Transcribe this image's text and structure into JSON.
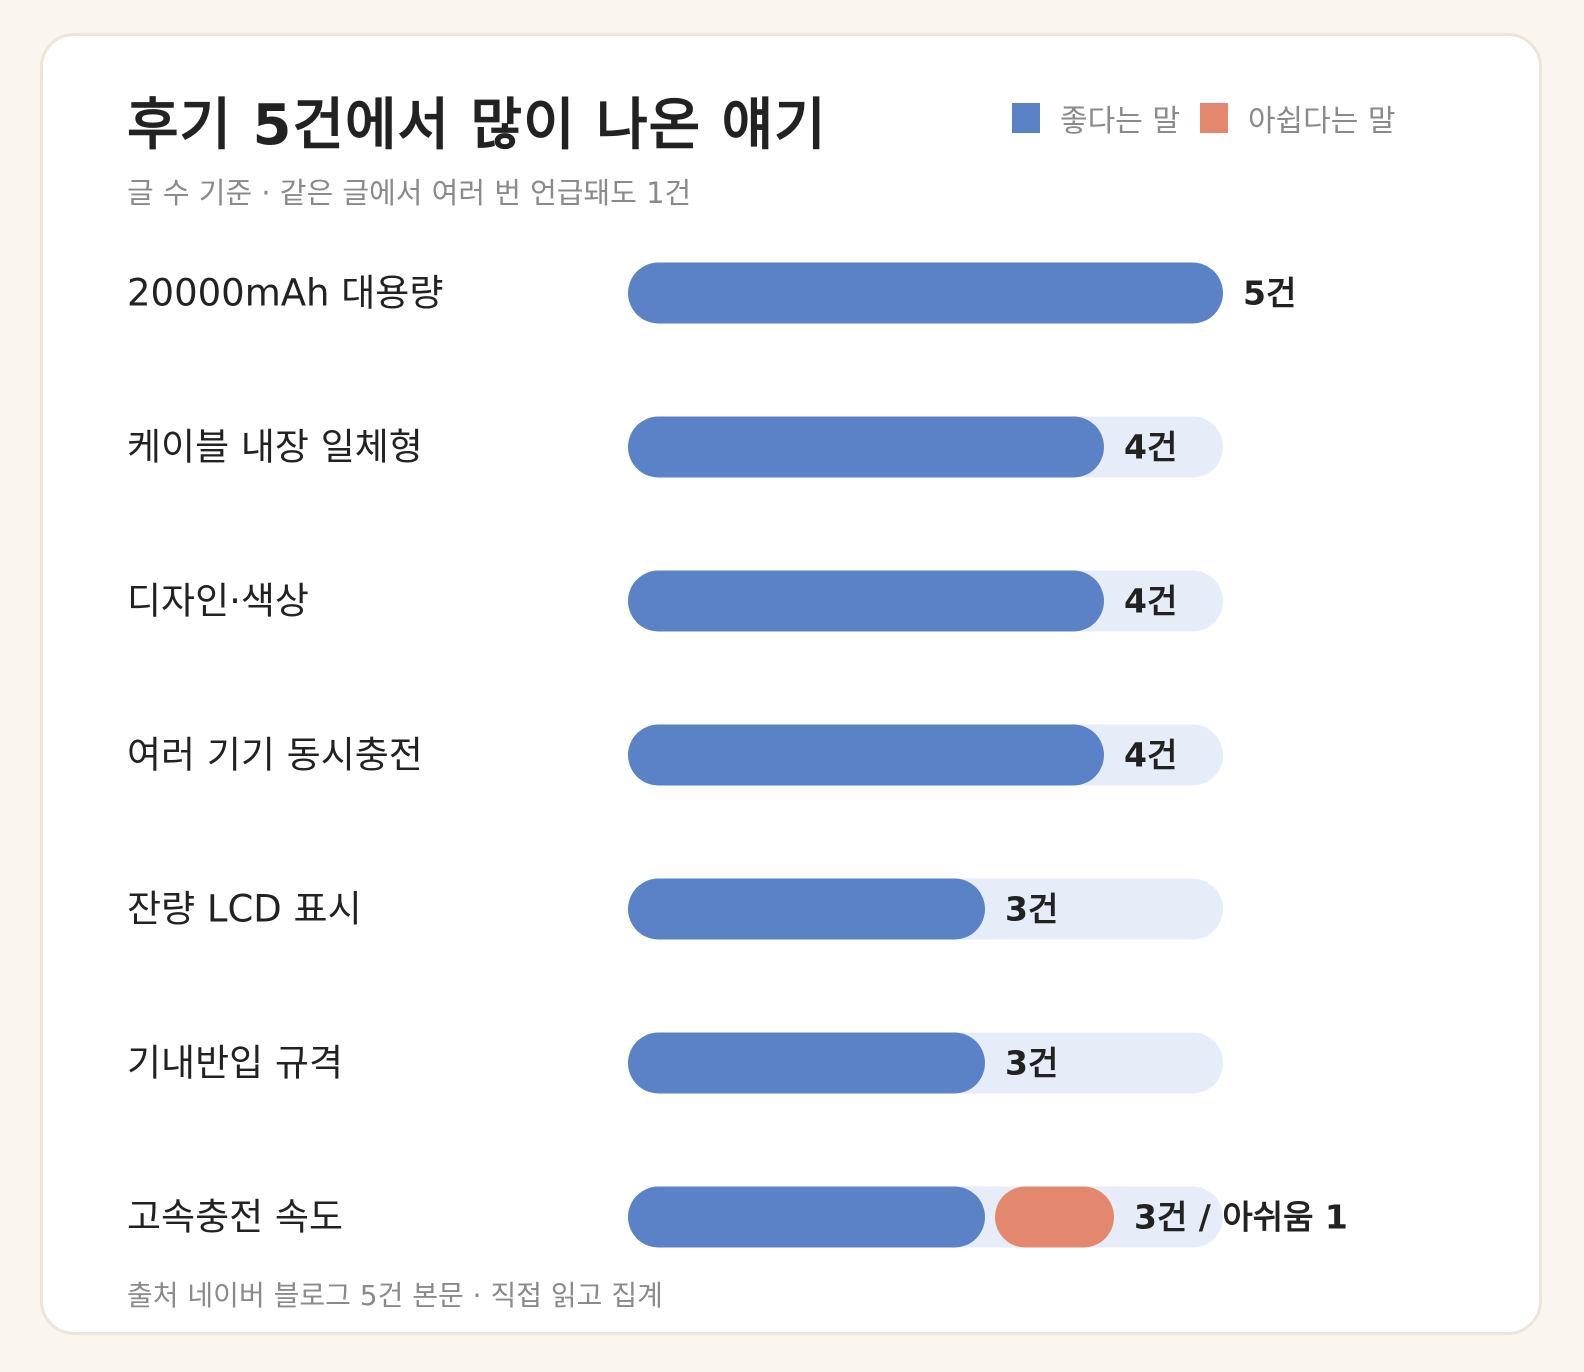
{
  "title": "후기 5건에서 많이 나온 얘기",
  "subtitle": "글 수 기준 · 같은 글에서 여러 번 언급돼도 1건",
  "footer": "출처 네이버 블로그 5건 본문 · 직접 읽고 집계",
  "legend": [
    {
      "label": "좋다는 말",
      "color": "#5b82c6"
    },
    {
      "label": "아쉽다는 말",
      "color": "#e3886e"
    }
  ],
  "colors": {
    "positive": "#5b82c6",
    "negative": "#e3886e",
    "track": "#e6edf8",
    "label": "#222222"
  },
  "chart_data": {
    "type": "bar",
    "orientation": "horizontal",
    "stacked": false,
    "xlim": [
      0,
      5
    ],
    "categories": [
      "20000mAh 대용량",
      "케이블 내장 일체형",
      "디자인·색상",
      "여러 기기 동시충전",
      "잔량 LCD 표시",
      "기내반입 규격",
      "고속충전 속도"
    ],
    "series": [
      {
        "name": "좋다는 말",
        "values": [
          5,
          4,
          4,
          4,
          3,
          3,
          3
        ]
      },
      {
        "name": "아쉽다는 말",
        "values": [
          0,
          0,
          0,
          0,
          0,
          0,
          1
        ]
      }
    ],
    "data_labels": [
      "5건",
      "4건",
      "4건",
      "4건",
      "3건",
      "3건",
      "3건 / 아쉬움 1"
    ],
    "legend_position": "top-right",
    "grid": false
  }
}
